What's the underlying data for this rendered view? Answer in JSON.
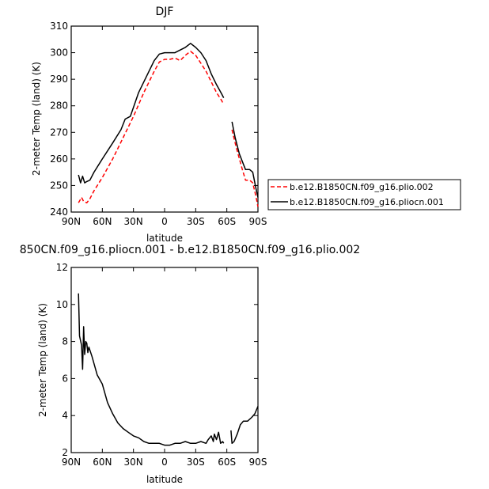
{
  "chart_data": [
    {
      "type": "line",
      "title": "DJF",
      "xlabel": "latitude",
      "ylabel": "2-meter Temp (land) (K)",
      "xlim": [
        90,
        -90
      ],
      "ylim": [
        240,
        310
      ],
      "yticks": [
        240,
        250,
        260,
        270,
        280,
        290,
        300,
        310
      ],
      "xticks": [
        {
          "value": 90,
          "label": "90N"
        },
        {
          "value": 60,
          "label": "60N"
        },
        {
          "value": 30,
          "label": "30N"
        },
        {
          "value": 0,
          "label": "0"
        },
        {
          "value": -30,
          "label": "30S"
        },
        {
          "value": -60,
          "label": "60S"
        },
        {
          "value": -90,
          "label": "90S"
        }
      ],
      "legend_position": "right",
      "series": [
        {
          "name": "b.e12.B1850CN.f09_g16.plio.002",
          "color": "#ff0000",
          "dash": "dashed",
          "segments": [
            [
              [
                83,
                243.5
              ],
              [
                80,
                245.5
              ],
              [
                78,
                244
              ],
              [
                75,
                243.5
              ],
              [
                72,
                245
              ],
              [
                68,
                248
              ],
              [
                60,
                253
              ],
              [
                50,
                260
              ],
              [
                40,
                268
              ],
              [
                30,
                276
              ],
              [
                20,
                285
              ],
              [
                10,
                293
              ],
              [
                5,
                296.5
              ],
              [
                0,
                297.5
              ],
              [
                -5,
                297.5
              ],
              [
                -10,
                298
              ],
              [
                -15,
                297
              ],
              [
                -20,
                299
              ],
              [
                -25,
                300.5
              ],
              [
                -30,
                299
              ],
              [
                -35,
                296
              ],
              [
                -40,
                293
              ],
              [
                -45,
                289
              ],
              [
                -50,
                285
              ],
              [
                -55,
                282
              ],
              [
                -57,
                280.5
              ]
            ],
            [
              [
                -65,
                271
              ],
              [
                -68,
                266
              ],
              [
                -70,
                263
              ],
              [
                -75,
                256
              ],
              [
                -78,
                252
              ],
              [
                -82,
                252
              ],
              [
                -85,
                251
              ],
              [
                -88,
                246
              ],
              [
                -90,
                242
              ]
            ]
          ]
        },
        {
          "name": "b.e12.B1850CN.f09_g16.pliocn.001",
          "color": "#000000",
          "dash": "solid",
          "segments": [
            [
              [
                83,
                254
              ],
              [
                81,
                251
              ],
              [
                79,
                253.5
              ],
              [
                77,
                251
              ],
              [
                75,
                251.5
              ],
              [
                72,
                252
              ],
              [
                68,
                255
              ],
              [
                60,
                260
              ],
              [
                50,
                266
              ],
              [
                42,
                271
              ],
              [
                38,
                275
              ],
              [
                33,
                276
              ],
              [
                25,
                285
              ],
              [
                15,
                293
              ],
              [
                10,
                297
              ],
              [
                5,
                299.5
              ],
              [
                0,
                300
              ],
              [
                -5,
                300
              ],
              [
                -10,
                300
              ],
              [
                -15,
                301
              ],
              [
                -20,
                302
              ],
              [
                -25,
                303.5
              ],
              [
                -30,
                302
              ],
              [
                -35,
                300
              ],
              [
                -40,
                297
              ],
              [
                -45,
                292
              ],
              [
                -50,
                288
              ],
              [
                -55,
                284.5
              ],
              [
                -57,
                283
              ]
            ],
            [
              [
                -65,
                274
              ],
              [
                -68,
                268
              ],
              [
                -72,
                262
              ],
              [
                -75,
                259
              ],
              [
                -78,
                256
              ],
              [
                -82,
                256
              ],
              [
                -85,
                255
              ],
              [
                -88,
                249
              ],
              [
                -90,
                245.5
              ]
            ]
          ]
        }
      ]
    },
    {
      "type": "line",
      "title": "850CN.f09_g16.pliocn.001 - b.e12.B1850CN.f09_g16.plio.002",
      "xlabel": "latitude",
      "ylabel": "2-meter Temp (land) (K)",
      "xlim": [
        90,
        -90
      ],
      "ylim": [
        2,
        12
      ],
      "yticks": [
        2,
        4,
        6,
        8,
        10,
        12
      ],
      "xticks": [
        {
          "value": 90,
          "label": "90N"
        },
        {
          "value": 60,
          "label": "60N"
        },
        {
          "value": 30,
          "label": "30N"
        },
        {
          "value": 0,
          "label": "0"
        },
        {
          "value": -30,
          "label": "30S"
        },
        {
          "value": -60,
          "label": "60S"
        },
        {
          "value": -90,
          "label": "90S"
        }
      ],
      "series": [
        {
          "color": "#000000",
          "dash": "solid",
          "segments": [
            [
              [
                83,
                10.6
              ],
              [
                82,
                8.3
              ],
              [
                80,
                7.8
              ],
              [
                79,
                6.5
              ],
              [
                78,
                8.8
              ],
              [
                77,
                7.3
              ],
              [
                76,
                8
              ],
              [
                75,
                7.9
              ],
              [
                74,
                7.4
              ],
              [
                73,
                7.7
              ],
              [
                70,
                7.2
              ],
              [
                65,
                6.2
              ],
              [
                60,
                5.7
              ],
              [
                55,
                4.7
              ],
              [
                50,
                4.1
              ],
              [
                45,
                3.6
              ],
              [
                40,
                3.3
              ],
              [
                35,
                3.1
              ],
              [
                30,
                2.9
              ],
              [
                25,
                2.8
              ],
              [
                20,
                2.6
              ],
              [
                15,
                2.5
              ],
              [
                10,
                2.5
              ],
              [
                5,
                2.5
              ],
              [
                0,
                2.4
              ],
              [
                -5,
                2.4
              ],
              [
                -10,
                2.5
              ],
              [
                -15,
                2.5
              ],
              [
                -20,
                2.6
              ],
              [
                -25,
                2.5
              ],
              [
                -30,
                2.5
              ],
              [
                -35,
                2.6
              ],
              [
                -40,
                2.5
              ],
              [
                -42,
                2.7
              ],
              [
                -45,
                2.9
              ],
              [
                -47,
                2.6
              ],
              [
                -48,
                3
              ],
              [
                -50,
                2.7
              ],
              [
                -52,
                3.1
              ],
              [
                -54,
                2.5
              ],
              [
                -56,
                2.6
              ],
              [
                -57,
                2.5
              ]
            ],
            [
              [
                -64,
                3.2
              ],
              [
                -65,
                2.5
              ],
              [
                -67,
                2.6
              ],
              [
                -70,
                3
              ],
              [
                -73,
                3.5
              ],
              [
                -76,
                3.7
              ],
              [
                -80,
                3.7
              ],
              [
                -84,
                3.9
              ],
              [
                -87,
                4.1
              ],
              [
                -90,
                4.5
              ]
            ]
          ]
        }
      ]
    }
  ]
}
